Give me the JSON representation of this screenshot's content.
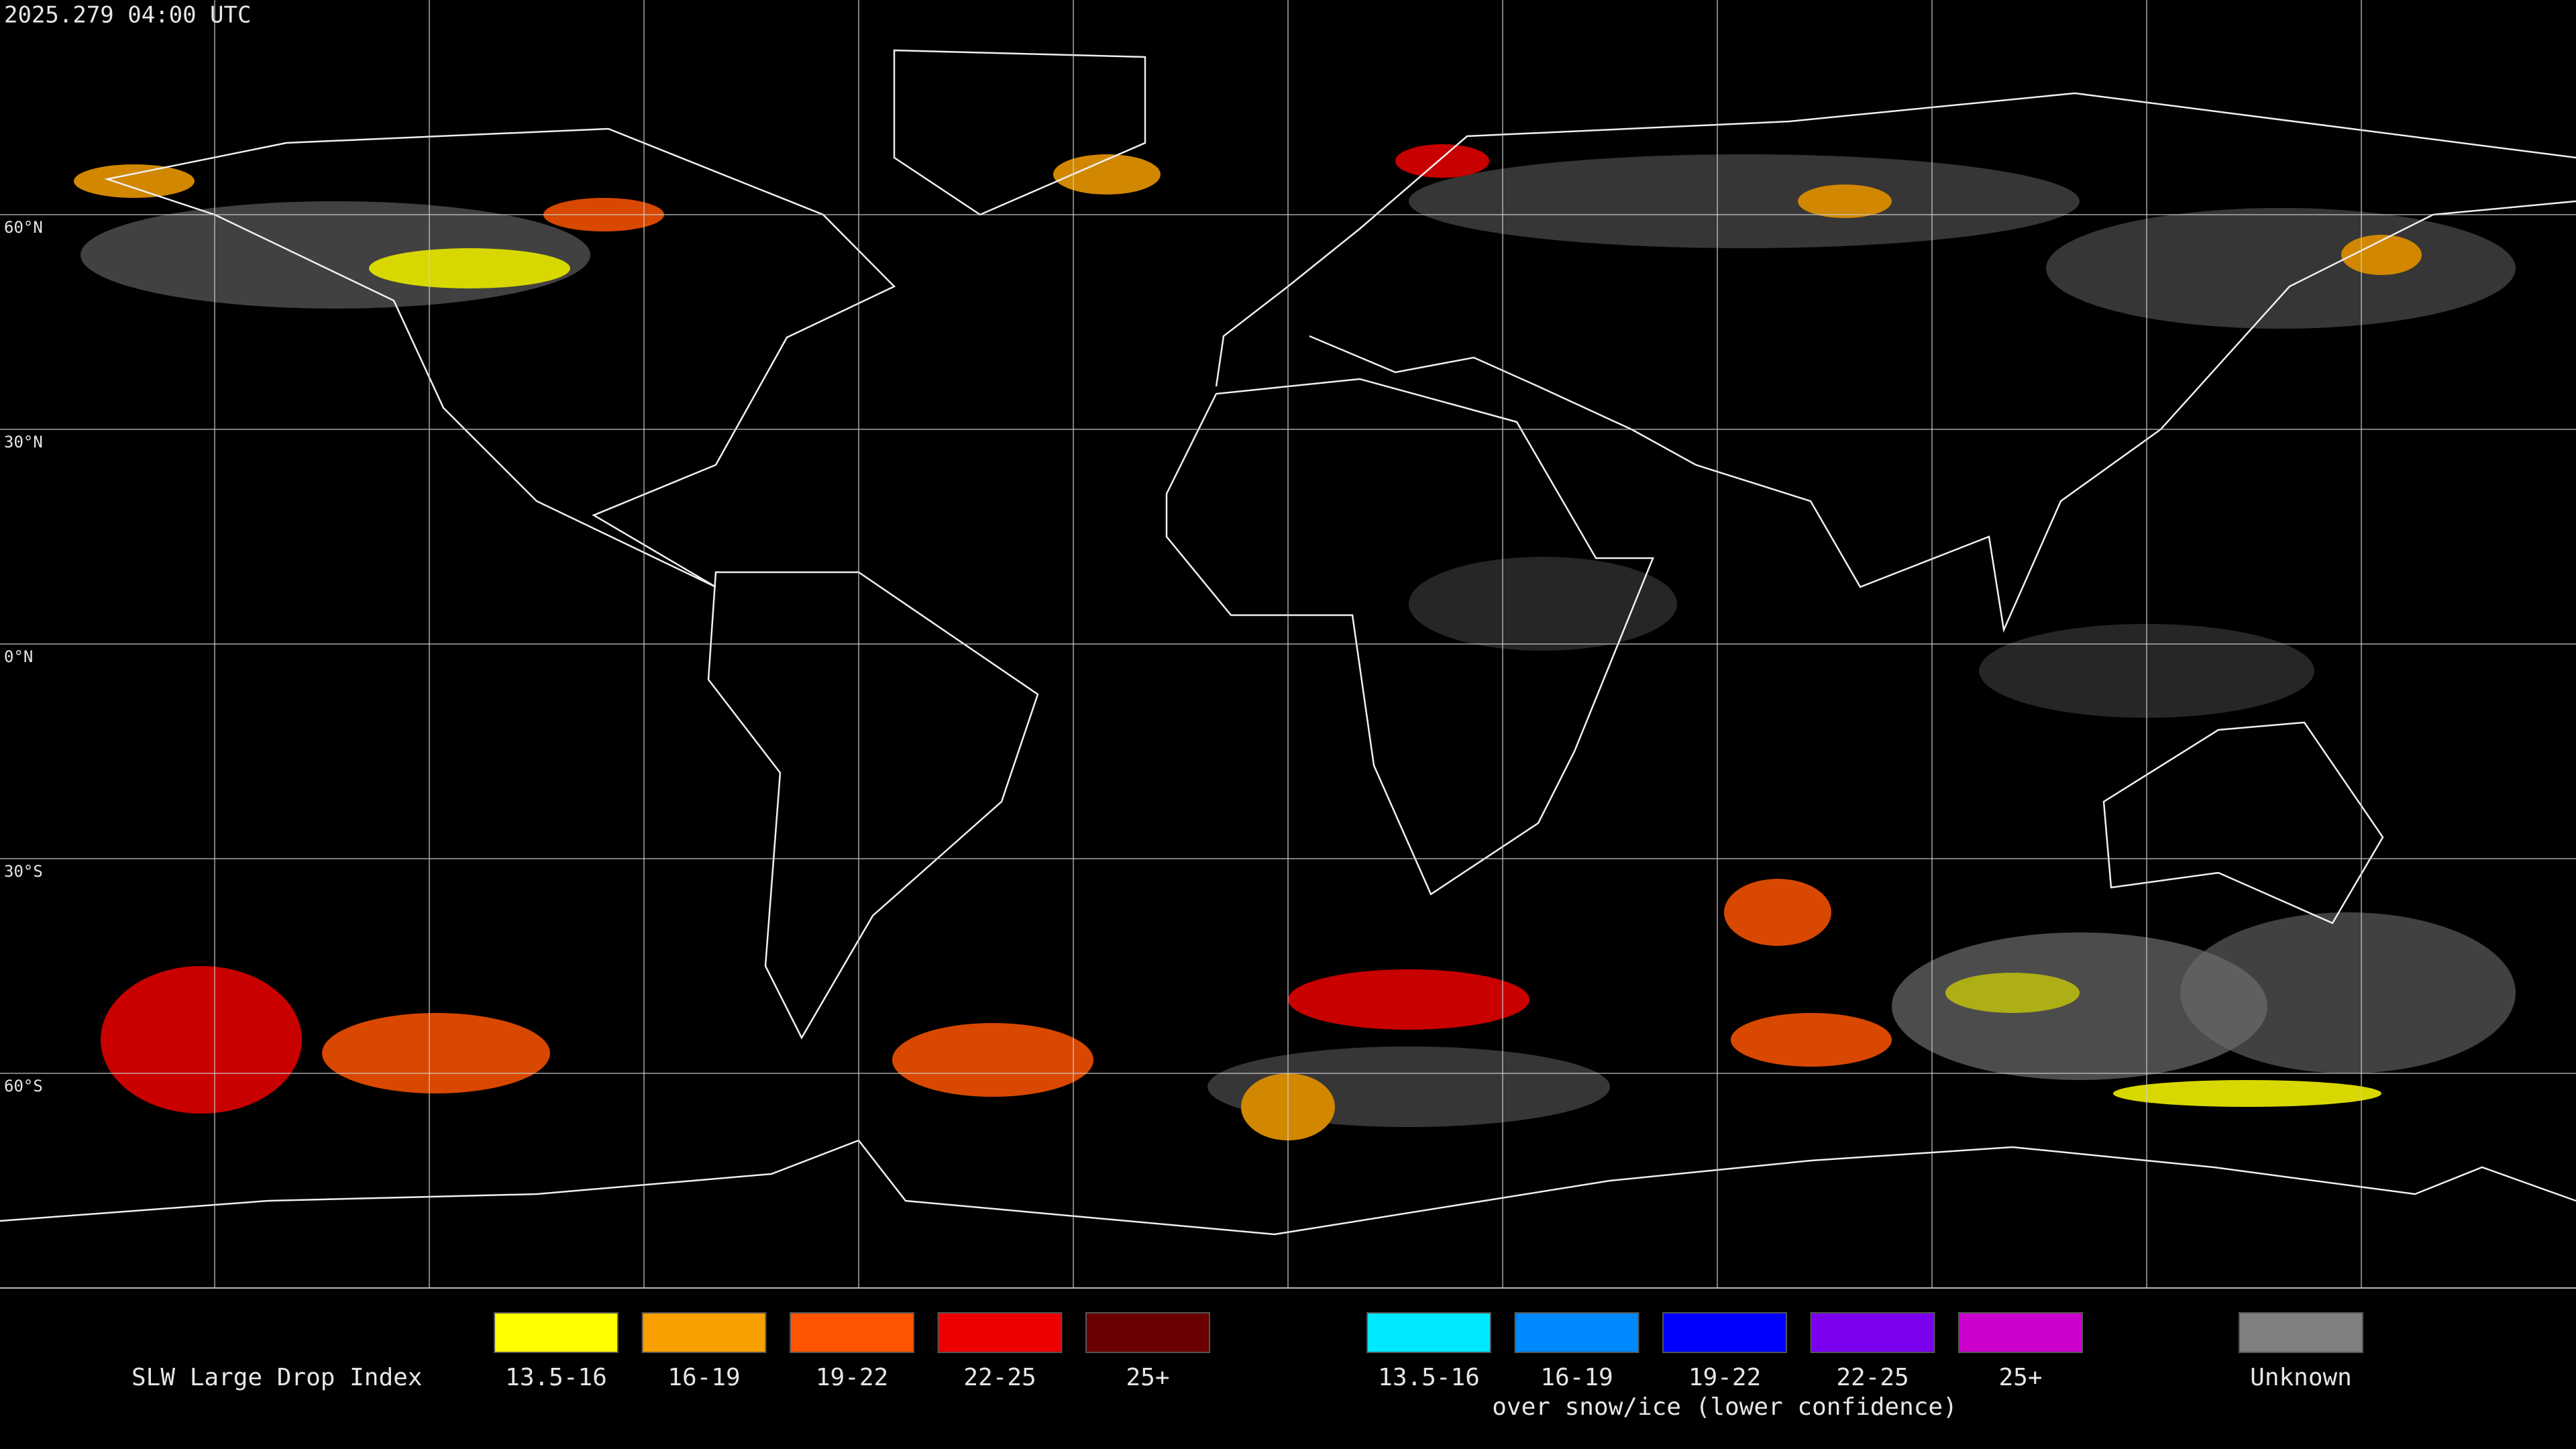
{
  "header": {
    "timestamp": "2025.279 04:00 UTC"
  },
  "map": {
    "lat_labels": [
      "60°N",
      "30°N",
      "0°N",
      "30°S",
      "60°S"
    ]
  },
  "legend": {
    "title": "SLW Large Drop Index",
    "groups": [
      {
        "items": [
          {
            "label": "13.5-16",
            "color": "#ffff00"
          },
          {
            "label": "16-19",
            "color": "#f7a000"
          },
          {
            "label": "19-22",
            "color": "#ff5500"
          },
          {
            "label": "22-25",
            "color": "#ee0000"
          },
          {
            "label": "25+",
            "color": "#6a0000"
          }
        ]
      },
      {
        "items": [
          {
            "label": "13.5-16",
            "color": "#00e8ff"
          },
          {
            "label": "16-19",
            "color": "#0088ff"
          },
          {
            "label": "19-22",
            "color": "#0000ff"
          },
          {
            "label": "22-25",
            "color": "#7a00ee"
          },
          {
            "label": "25+",
            "color": "#cc00cc"
          }
        ],
        "note": "over snow/ice (lower confidence)"
      },
      {
        "items": [
          {
            "label": "Unknown",
            "color": "#808080"
          }
        ]
      }
    ]
  }
}
